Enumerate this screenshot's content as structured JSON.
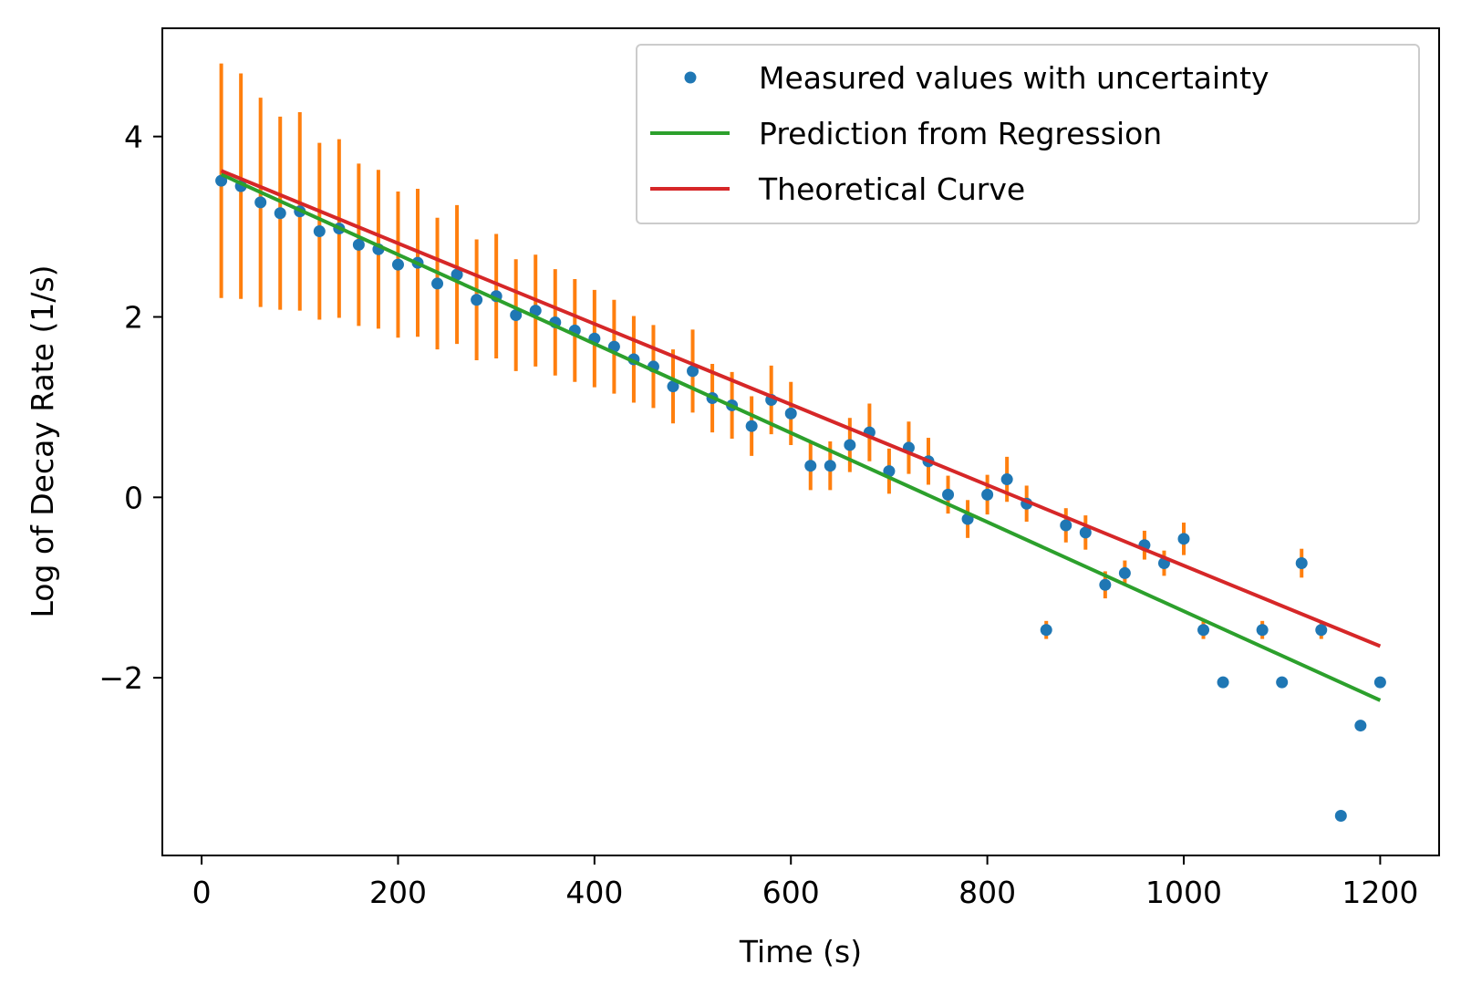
{
  "chart_data": {
    "type": "scatter",
    "title": "",
    "xlabel": "Time (s)",
    "ylabel": "Log of Decay Rate (1/s)",
    "xlim": [
      -40,
      1260
    ],
    "ylim": [
      -3.97,
      5.2
    ],
    "xticks": [
      0,
      200,
      400,
      600,
      800,
      1000,
      1200
    ],
    "xtick_labels": [
      "0",
      "200",
      "400",
      "600",
      "800",
      "1000",
      "1200"
    ],
    "yticks": [
      -2,
      0,
      2,
      4
    ],
    "ytick_labels": [
      "−2",
      "0",
      "2",
      "4"
    ],
    "grid": false,
    "legend_position": "top-right",
    "series": [
      {
        "name": "Measured values with uncertainty",
        "kind": "points_with_errorbars",
        "color": "#1f77b4",
        "errorbar_color": "#ff7f0e",
        "x": [
          20,
          40,
          60,
          80,
          100,
          120,
          140,
          160,
          180,
          200,
          220,
          240,
          260,
          280,
          300,
          320,
          340,
          360,
          380,
          400,
          420,
          440,
          460,
          480,
          500,
          520,
          540,
          560,
          580,
          600,
          620,
          640,
          660,
          680,
          700,
          720,
          740,
          760,
          780,
          800,
          820,
          840,
          860,
          880,
          900,
          920,
          940,
          960,
          980,
          1000,
          1020,
          1040,
          1060,
          1080,
          1100,
          1120,
          1140,
          1160,
          1180,
          1200
        ],
        "y": [
          3.51,
          3.45,
          3.27,
          3.15,
          3.17,
          2.95,
          2.98,
          2.8,
          2.75,
          2.58,
          2.6,
          2.37,
          2.47,
          2.19,
          2.23,
          2.02,
          2.07,
          1.94,
          1.85,
          1.76,
          1.67,
          1.53,
          1.45,
          1.23,
          1.4,
          1.1,
          1.02,
          0.79,
          1.08,
          0.93,
          0.35,
          0.35,
          0.58,
          0.72,
          0.29,
          0.55,
          0.4,
          0.03,
          -0.24,
          0.03,
          0.2,
          -0.07,
          -1.47,
          -0.31,
          -0.39,
          -0.97,
          -0.84,
          -0.53,
          -0.73,
          -0.46,
          -1.47,
          -2.05,
          null,
          -1.47,
          -2.05,
          -0.73,
          -1.47,
          -3.53,
          -2.53,
          -2.05
        ],
        "yerr": [
          1.3,
          1.25,
          1.16,
          1.07,
          1.1,
          0.98,
          0.99,
          0.9,
          0.88,
          0.81,
          0.82,
          0.73,
          0.77,
          0.67,
          0.69,
          0.62,
          0.62,
          0.59,
          0.57,
          0.54,
          0.52,
          0.48,
          0.46,
          0.41,
          0.46,
          0.38,
          0.37,
          0.33,
          0.38,
          0.35,
          0.27,
          0.27,
          0.3,
          0.32,
          0.25,
          0.29,
          0.26,
          0.21,
          0.21,
          0.22,
          0.25,
          0.2,
          0.1,
          0.19,
          0.19,
          0.15,
          0.14,
          0.16,
          0.14,
          0.18,
          0.1,
          0.06,
          null,
          0.1,
          0.06,
          0.16,
          0.1,
          0.03,
          0.04,
          0.06
        ]
      },
      {
        "name": "Prediction from Regression",
        "kind": "line",
        "color": "#2ca02c",
        "x": [
          20,
          1200
        ],
        "y": [
          3.58,
          -2.25
        ]
      },
      {
        "name": "Theoretical Curve",
        "kind": "line",
        "color": "#d62728",
        "x": [
          20,
          1200
        ],
        "y": [
          3.62,
          -1.65
        ]
      }
    ]
  }
}
